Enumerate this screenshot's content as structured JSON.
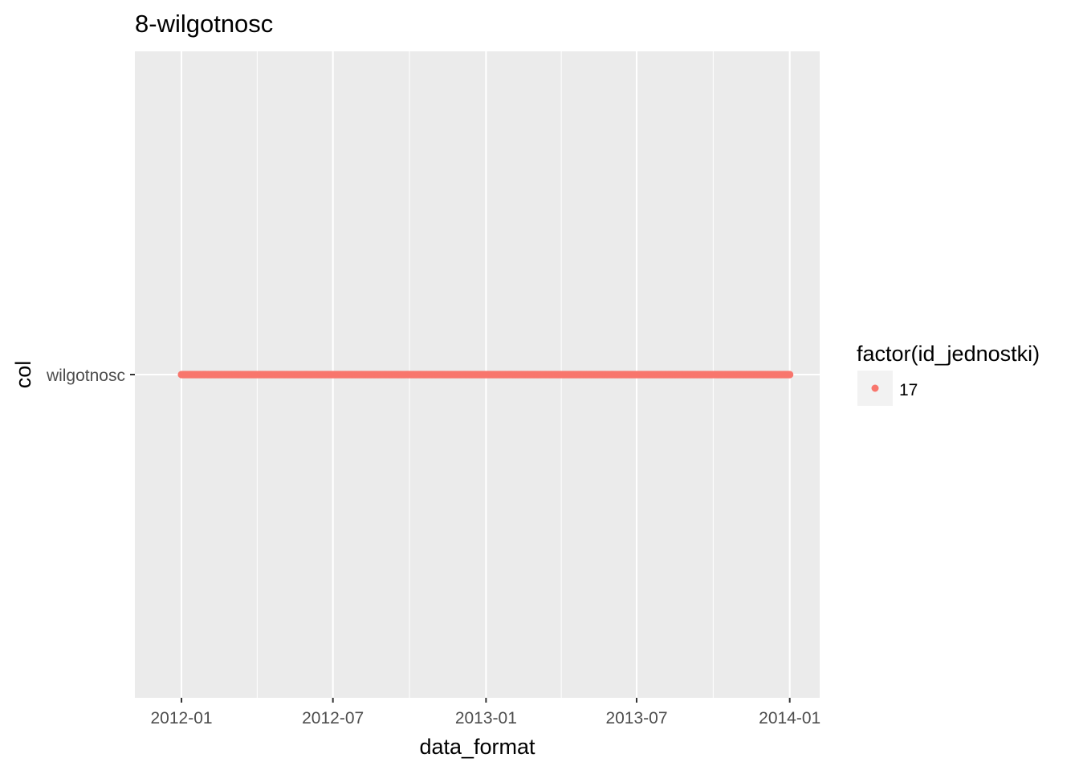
{
  "chart_data": {
    "type": "scatter",
    "title": "8-wilgotnosc",
    "xlabel": "data_format",
    "ylabel": "col",
    "x_axis_type": "date",
    "xlim": [
      "2011-11-06",
      "2014-02-06"
    ],
    "x_ticks": [
      "2012-01",
      "2012-07",
      "2013-01",
      "2013-07",
      "2014-01"
    ],
    "y_categories": [
      "wilgotnosc"
    ],
    "series": [
      {
        "name": "17",
        "color": "#F8766D",
        "category": "wilgotnosc",
        "x_start": "2012-01-01",
        "x_end": "2014-01-01",
        "frequency": "daily"
      }
    ],
    "legend": {
      "title": "factor(id_jednostki)",
      "position": "right"
    },
    "grid": true,
    "panel_background": "#EBEBEB",
    "grid_color": "#FFFFFF"
  }
}
